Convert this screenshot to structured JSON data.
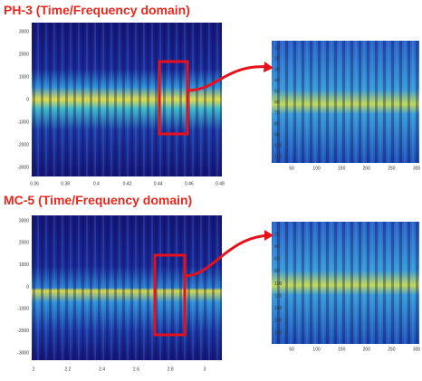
{
  "panels": [
    {
      "title": "PH-3 (Time/Frequency domain)",
      "main": {
        "yticks": [
          3000,
          2000,
          1000,
          0,
          -1000,
          -2000,
          -3000
        ],
        "xticks": [
          0.36,
          0.38,
          0.4,
          0.42,
          0.44,
          0.46,
          0.48
        ]
      },
      "zoom": {
        "yticks": [
          10,
          20,
          30,
          40,
          50,
          60,
          70,
          80,
          90,
          100,
          110
        ],
        "xticks": [
          50,
          100,
          150,
          200,
          250,
          300
        ]
      }
    },
    {
      "title": "MC-5 (Time/Frequency domain)",
      "main": {
        "yticks": [
          3000,
          2000,
          1000,
          0,
          -1000,
          -2000,
          -3000
        ],
        "xticks": [
          2,
          2.2,
          2.4,
          2.6,
          2.8,
          3
        ]
      },
      "zoom": {
        "yticks": [
          20,
          40,
          60,
          80,
          100,
          120,
          140,
          160,
          180
        ],
        "xticks": [
          50,
          100,
          150,
          200,
          250,
          300
        ]
      }
    }
  ]
}
